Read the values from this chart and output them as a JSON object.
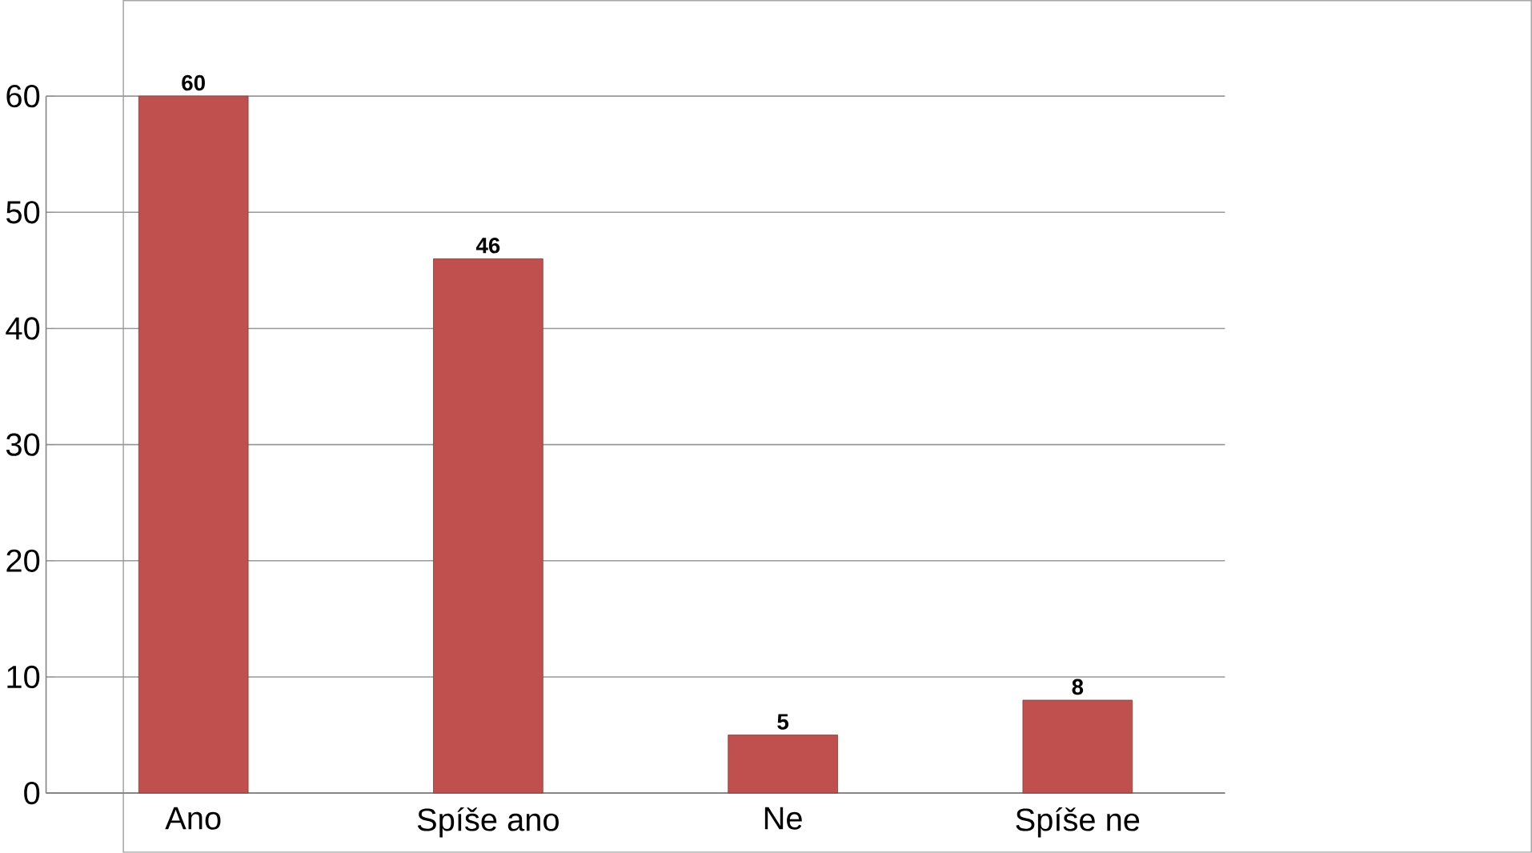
{
  "chart_data": {
    "type": "bar",
    "categories": [
      "Ano",
      "Spíše ano",
      "Ne",
      "Spíše ne"
    ],
    "values": [
      60,
      46,
      5,
      8
    ],
    "color": "#c0504d",
    "ylim": [
      0,
      60
    ],
    "yticks": [
      0,
      10,
      20,
      30,
      40,
      50,
      60
    ],
    "grid": "y",
    "data_labels": true
  }
}
